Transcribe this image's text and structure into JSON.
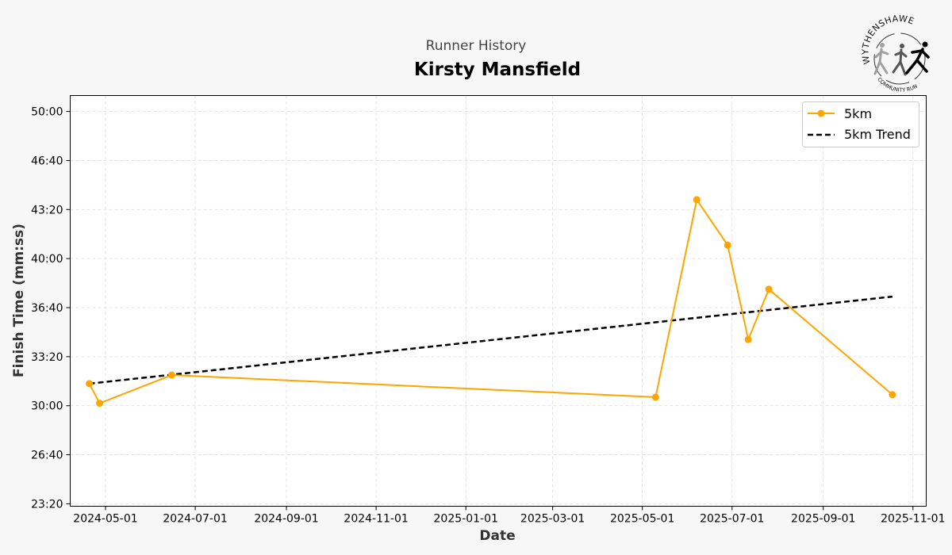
{
  "header": {
    "subtitle": "Runner History",
    "title": "Kirsty Mansfield"
  },
  "logo": {
    "top_text": "WYTHENSHAWE",
    "bottom_text": "COMMUNITY RUN",
    "icon": "runners-logo-icon"
  },
  "chart_data": {
    "type": "line",
    "title": "Kirsty Mansfield",
    "subtitle": "Runner History",
    "xlabel": "Date",
    "ylabel": "Finish Time (mm:ss)",
    "x_ticks": [
      "2024-05-01",
      "2024-07-01",
      "2024-09-01",
      "2024-11-01",
      "2025-01-01",
      "2025-03-01",
      "2025-05-01",
      "2025-07-01",
      "2025-09-01",
      "2025-11-01"
    ],
    "y_ticks": [
      "23:20",
      "26:40",
      "30:00",
      "33:20",
      "36:40",
      "40:00",
      "43:20",
      "46:40",
      "50:00"
    ],
    "xlim": [
      "2024-04-07",
      "2025-11-10"
    ],
    "ylim": [
      "23:10",
      "51:05"
    ],
    "grid": true,
    "legend_position": "top-right",
    "series": [
      {
        "name": "5km",
        "color": "#ffa500",
        "marker": "circle",
        "points": [
          {
            "date": "2024-04-20",
            "time": "31:30"
          },
          {
            "date": "2024-04-27",
            "time": "30:10"
          },
          {
            "date": "2024-06-15",
            "time": "32:05"
          },
          {
            "date": "2025-05-10",
            "time": "30:35"
          },
          {
            "date": "2025-06-07",
            "time": "44:00"
          },
          {
            "date": "2025-06-28",
            "time": "40:55"
          },
          {
            "date": "2025-07-12",
            "time": "34:30"
          },
          {
            "date": "2025-07-26",
            "time": "37:55"
          },
          {
            "date": "2025-10-18",
            "time": "30:45"
          }
        ]
      },
      {
        "name": "5km Trend",
        "color": "#000000",
        "style": "dashed",
        "points": [
          {
            "date": "2024-04-20",
            "time": "31:30"
          },
          {
            "date": "2025-10-18",
            "time": "37:25"
          }
        ]
      }
    ]
  }
}
